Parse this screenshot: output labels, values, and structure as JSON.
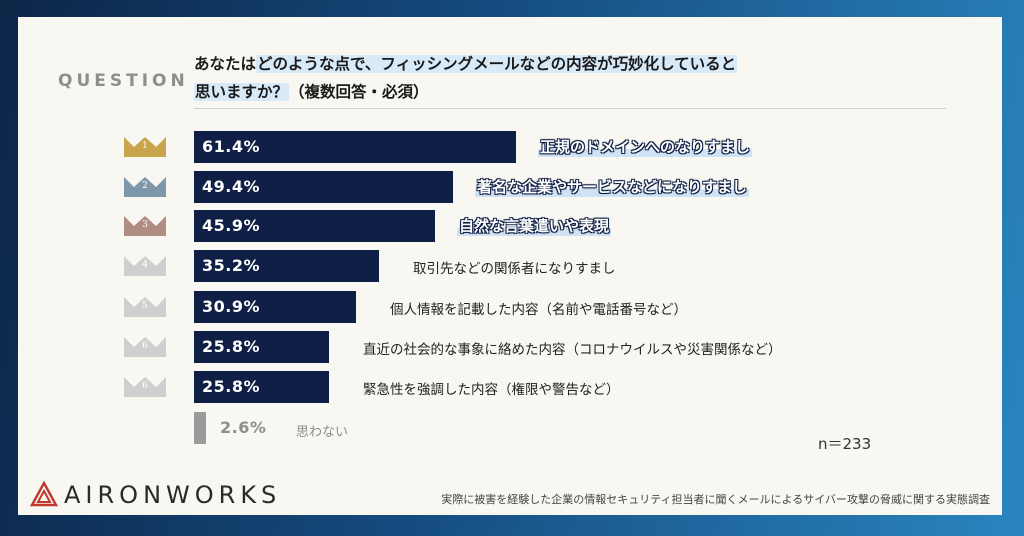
{
  "header": {
    "question_label": "QUESTION",
    "question_prefix": "あなたは",
    "question_line1_hl": "どのような点で、フィッシングメールなどの内容が巧妙化していると",
    "question_line2_hl": "思いますか？",
    "question_note": "（複数回答・必須）"
  },
  "colors": {
    "bar": "#0f1f45",
    "gold": "#c9a44a",
    "silver": "#7f97ab",
    "bronze": "#b08c83",
    "plain": "#cfcfcf",
    "none": "#9a9a9a"
  },
  "chart_data": {
    "type": "bar",
    "orientation": "horizontal",
    "xlim": [
      0,
      100
    ],
    "categories": [
      "正規のドメインへのなりすまし",
      "著名な企業やサービスなどになりすまし",
      "自然な言葉遣いや表現",
      "取引先などの関係者になりすまし",
      "個人情報を記載した内容（名前や電話番号など）",
      "直近の社会的な事象に絡めた内容（コロナウイルスや災害関係など）",
      "緊急性を強調した内容（権限や警告など）",
      "思わない"
    ],
    "values": [
      61.4,
      49.4,
      45.9,
      35.2,
      30.9,
      25.8,
      25.8,
      2.6
    ],
    "value_labels": [
      "61.4%",
      "49.4%",
      "45.9%",
      "35.2%",
      "30.9%",
      "25.8%",
      "25.8%",
      "2.6%"
    ],
    "ranks": [
      "1",
      "2",
      "3",
      "4",
      "5",
      "6",
      "6",
      ""
    ],
    "n_label": "n＝233"
  },
  "footer": {
    "logo": "AIRONWORKS",
    "note": "実際に被害を経験した企業の情報セキュリティ担当者に聞くメールによるサイバー攻撃の脅威に関する実態調査"
  }
}
